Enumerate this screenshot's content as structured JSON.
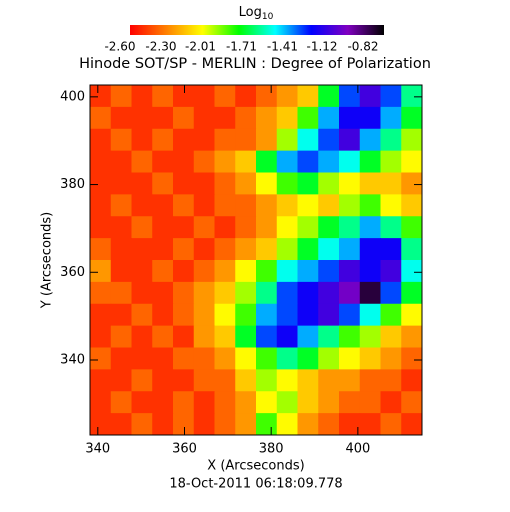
{
  "chart_data": {
    "type": "heatmap",
    "title": "Hinode SOT/SP - MERLIN : Degree of Polarization",
    "x_label": "X (Arcseconds)",
    "y_label": "Y (Arcseconds)",
    "footer": "18-Oct-2011 06:18:09.778",
    "colorbar_label": "Log",
    "colorbar_label_sub": "10",
    "clim": [
      -2.6,
      -0.82
    ],
    "cticks": [
      {
        "value": -2.6,
        "label": "-2.60"
      },
      {
        "value": -2.3,
        "label": "-2.30"
      },
      {
        "value": -2.01,
        "label": "-2.01"
      },
      {
        "value": -1.71,
        "label": "-1.71"
      },
      {
        "value": -1.41,
        "label": "-1.41"
      },
      {
        "value": -1.12,
        "label": "-1.12"
      },
      {
        "value": -0.82,
        "label": "-0.82"
      }
    ],
    "colormap": [
      "#ff0000",
      "#ff8000",
      "#ffff00",
      "#00ff00",
      "#00ffff",
      "#0000ff",
      "#8000c0",
      "#000000"
    ],
    "xlim": [
      338.2,
      414.8
    ],
    "ylim": [
      322.9,
      402.7
    ],
    "xticks": [
      340,
      360,
      380,
      400
    ],
    "yticks": [
      340,
      360,
      380,
      400
    ],
    "z": [
      [
        -2.5,
        -2.4,
        -2.5,
        -2.4,
        -2.5,
        -2.5,
        -2.4,
        -2.5,
        -2.4,
        -2.3,
        -2.2,
        -1.8,
        -1.4,
        -1.2,
        -1.4,
        -1.7
      ],
      [
        -2.4,
        -2.5,
        -2.5,
        -2.5,
        -2.4,
        -2.5,
        -2.5,
        -2.4,
        -2.3,
        -2.2,
        -1.9,
        -1.5,
        -1.3,
        -1.3,
        -1.5,
        -1.8
      ],
      [
        -2.5,
        -2.4,
        -2.5,
        -2.4,
        -2.5,
        -2.5,
        -2.4,
        -2.4,
        -2.3,
        -2.0,
        -1.6,
        -1.4,
        -1.2,
        -1.5,
        -1.7,
        -2.0
      ],
      [
        -2.5,
        -2.5,
        -2.4,
        -2.5,
        -2.5,
        -2.4,
        -2.3,
        -2.2,
        -1.8,
        -1.5,
        -1.4,
        -1.5,
        -1.6,
        -1.8,
        -2.0,
        -2.1
      ],
      [
        -2.5,
        -2.5,
        -2.5,
        -2.4,
        -2.5,
        -2.5,
        -2.4,
        -2.3,
        -2.1,
        -1.9,
        -1.8,
        -2.0,
        -2.1,
        -2.2,
        -2.2,
        -2.3
      ],
      [
        -2.5,
        -2.4,
        -2.5,
        -2.5,
        -2.4,
        -2.5,
        -2.4,
        -2.4,
        -2.3,
        -2.2,
        -2.1,
        -2.2,
        -2.0,
        -1.9,
        -2.1,
        -2.2
      ],
      [
        -2.5,
        -2.5,
        -2.4,
        -2.5,
        -2.5,
        -2.4,
        -2.5,
        -2.4,
        -2.3,
        -2.1,
        -2.0,
        -1.8,
        -1.7,
        -1.5,
        -1.7,
        -1.9
      ],
      [
        -2.4,
        -2.5,
        -2.5,
        -2.5,
        -2.4,
        -2.5,
        -2.4,
        -2.3,
        -2.2,
        -2.0,
        -1.8,
        -1.6,
        -1.5,
        -1.3,
        -1.3,
        -1.7
      ],
      [
        -2.3,
        -2.5,
        -2.5,
        -2.4,
        -2.5,
        -2.4,
        -2.3,
        -2.1,
        -1.9,
        -1.6,
        -1.5,
        -1.4,
        -1.2,
        -1.3,
        -1.2,
        -1.6
      ],
      [
        -2.4,
        -2.4,
        -2.5,
        -2.5,
        -2.4,
        -2.3,
        -2.2,
        -2.0,
        -1.7,
        -1.4,
        -1.3,
        -1.2,
        -1.1,
        -0.9,
        -1.4,
        -1.8
      ],
      [
        -2.5,
        -2.5,
        -2.4,
        -2.5,
        -2.4,
        -2.3,
        -2.1,
        -1.9,
        -1.5,
        -1.4,
        -1.3,
        -1.2,
        -1.4,
        -1.6,
        -1.9,
        -2.1
      ],
      [
        -2.5,
        -2.4,
        -2.5,
        -2.4,
        -2.5,
        -2.3,
        -2.2,
        -1.8,
        -1.4,
        -1.3,
        -1.5,
        -1.7,
        -1.9,
        -2.0,
        -2.2,
        -2.3
      ],
      [
        -2.4,
        -2.5,
        -2.5,
        -2.5,
        -2.4,
        -2.4,
        -2.3,
        -2.1,
        -1.9,
        -1.7,
        -1.8,
        -2.0,
        -2.1,
        -2.2,
        -2.3,
        -2.4
      ],
      [
        -2.5,
        -2.5,
        -2.4,
        -2.5,
        -2.5,
        -2.4,
        -2.4,
        -2.2,
        -2.0,
        -2.1,
        -2.2,
        -2.3,
        -2.3,
        -2.4,
        -2.4,
        -2.5
      ],
      [
        -2.5,
        -2.4,
        -2.5,
        -2.5,
        -2.4,
        -2.5,
        -2.4,
        -2.3,
        -2.1,
        -2.0,
        -2.2,
        -2.3,
        -2.4,
        -2.4,
        -2.5,
        -2.4
      ],
      [
        -2.5,
        -2.5,
        -2.4,
        -2.5,
        -2.4,
        -2.5,
        -2.4,
        -2.3,
        -1.9,
        -2.1,
        -2.3,
        -2.4,
        -2.5,
        -2.5,
        -2.4,
        -2.5
      ]
    ]
  }
}
